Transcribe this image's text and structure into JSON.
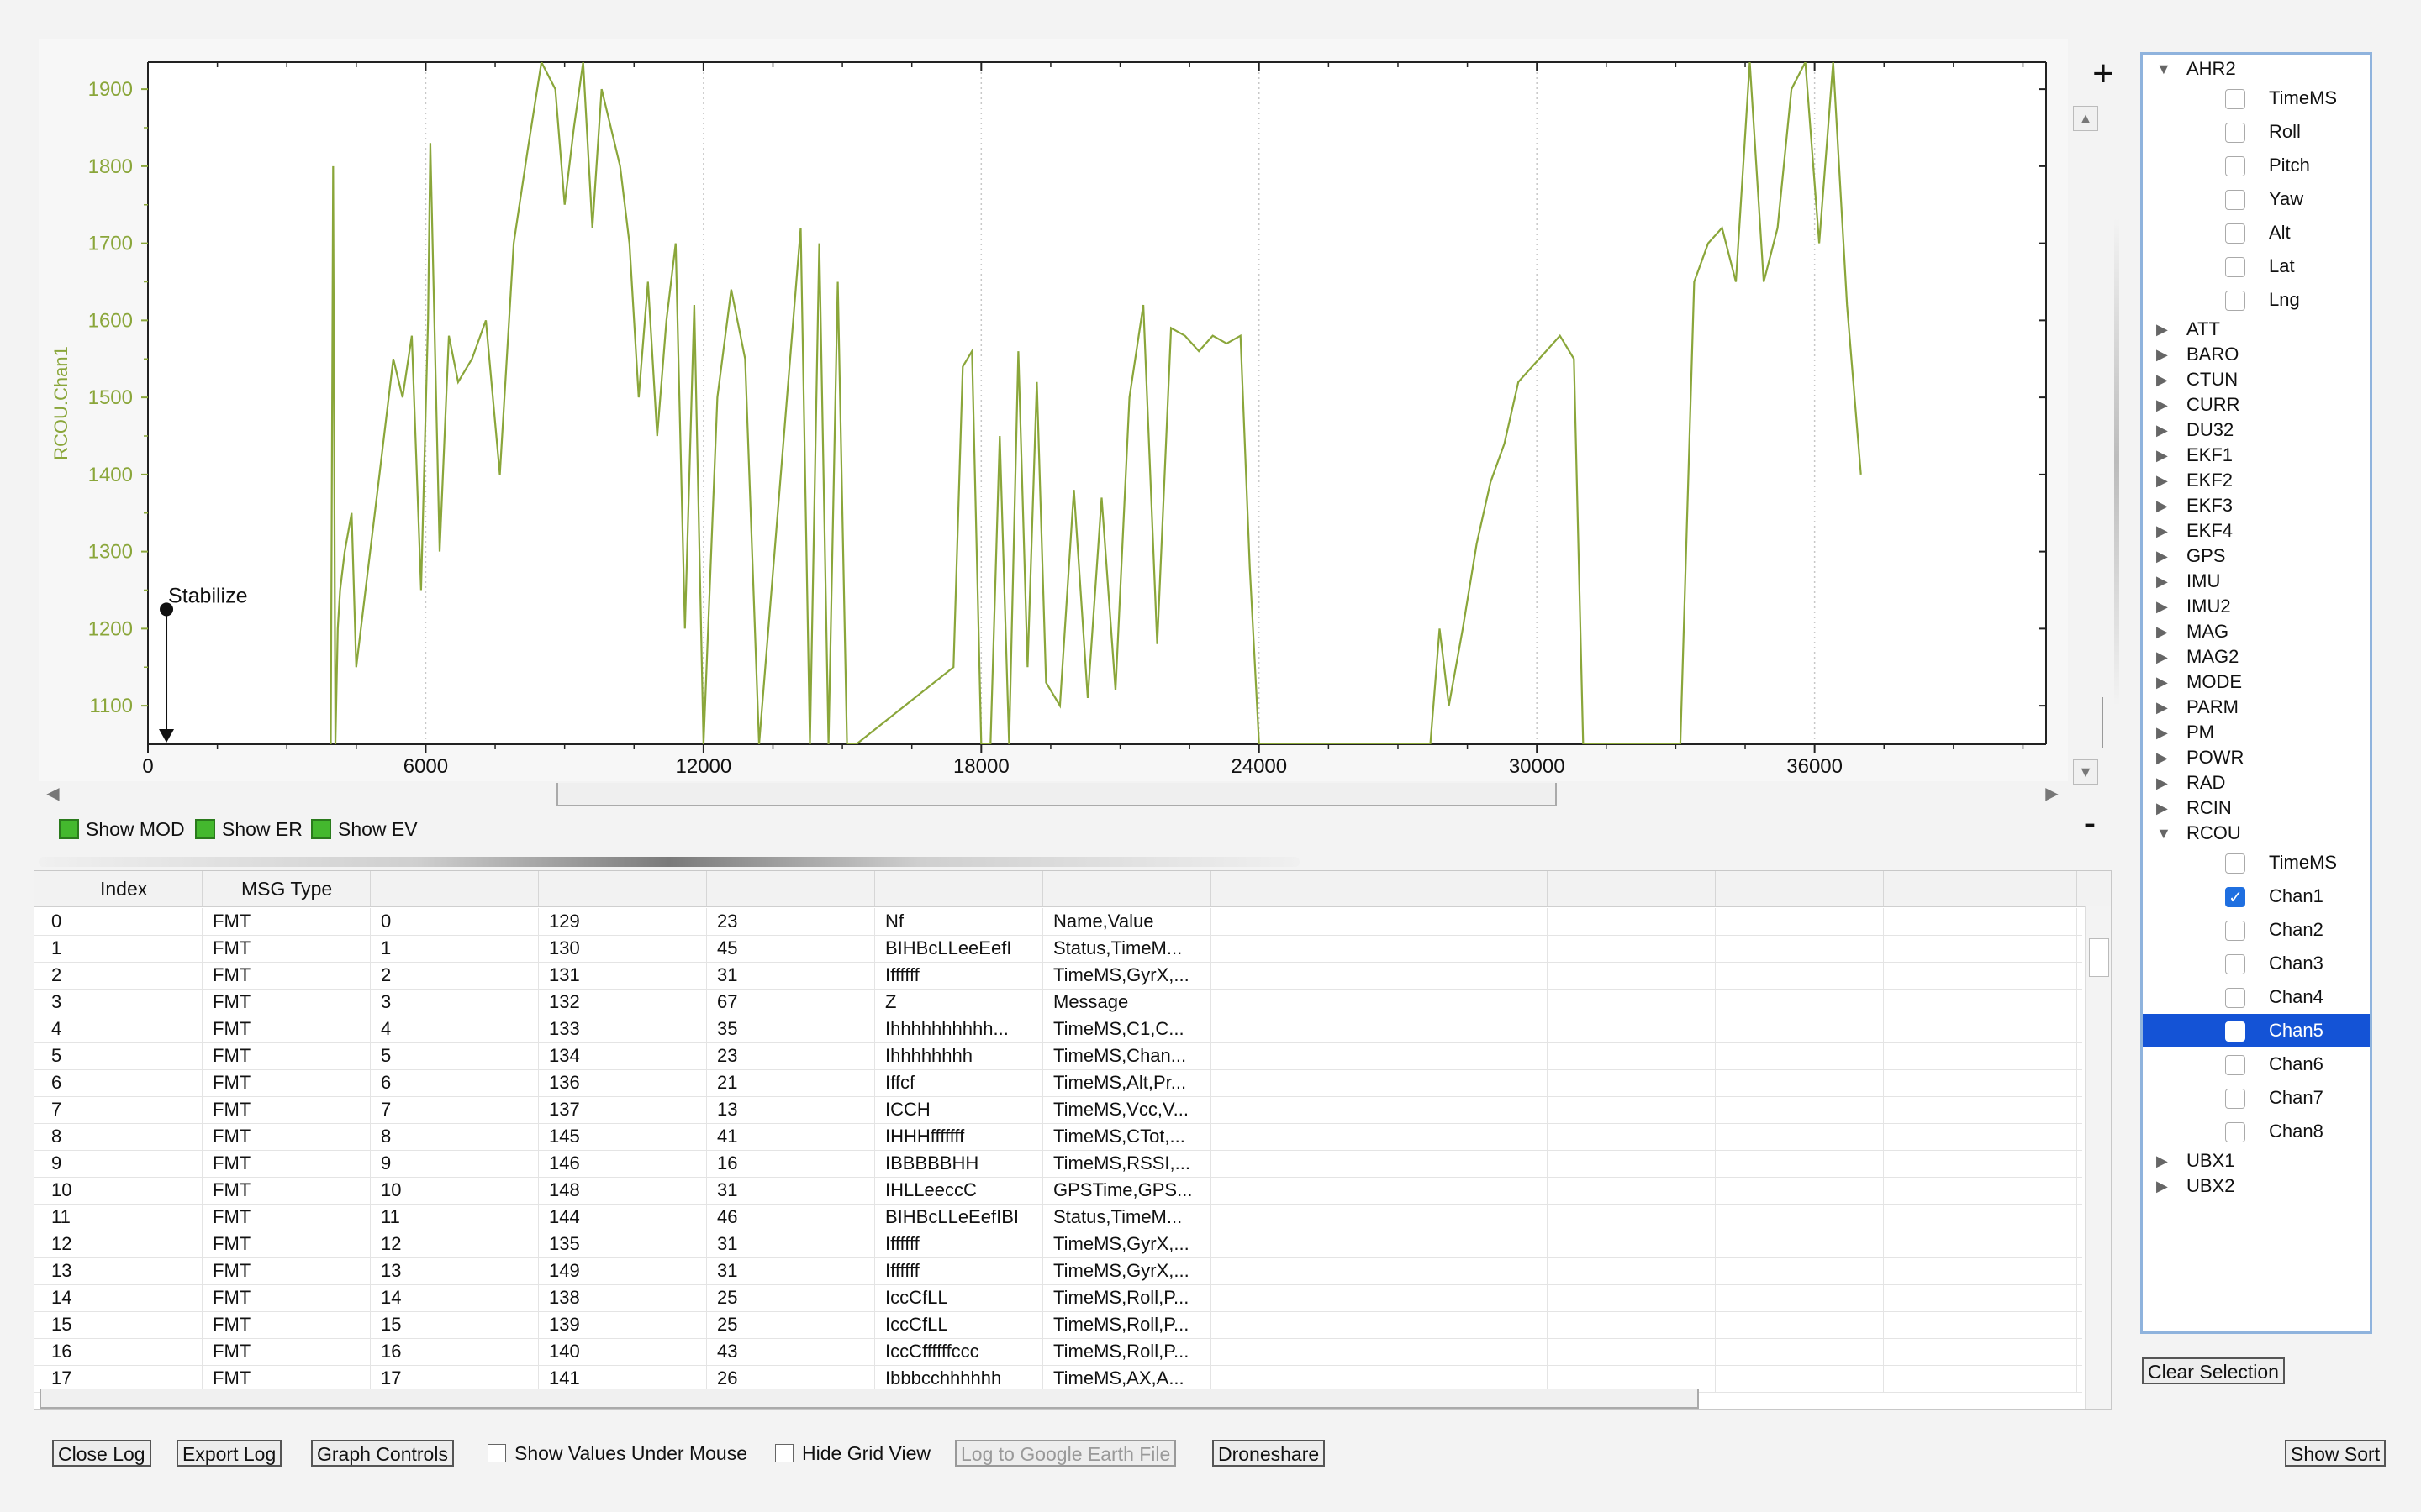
{
  "graph": {
    "y_axis_label": "RCOU.Chan1",
    "zoom_in": "+",
    "zoom_out": "-",
    "annotation": "Stabilize",
    "show_toggles": [
      "Show MOD",
      "Show ER",
      "Show EV"
    ]
  },
  "chart_data": {
    "type": "line",
    "ylabel": "RCOU.Chan1",
    "xlim": [
      0,
      41000
    ],
    "ylim": [
      1050,
      1935
    ],
    "x_ticks": [
      "0",
      "6000",
      "12000",
      "18000",
      "24000",
      "30000",
      "36000"
    ],
    "y_ticks": [
      "1100",
      "1200",
      "1300",
      "1400",
      "1500",
      "1600",
      "1700",
      "1800",
      "1900"
    ],
    "series": [
      {
        "color": "#8aa63a",
        "x": [
          3950,
          4000,
          4050,
          4100,
          4150,
          4250,
          4400,
          4500,
          4700,
          4900,
          5100,
          5300,
          5500,
          5700,
          5900,
          6050,
          6100,
          6300,
          6500,
          6700,
          7000,
          7300,
          7600,
          7900,
          8200,
          8500,
          8800,
          9000,
          9200,
          9400,
          9600,
          9800,
          10000,
          10200,
          10400,
          10600,
          10800,
          11000,
          11200,
          11400,
          11600,
          11800,
          12000,
          12300,
          12600,
          12900,
          13200,
          14100,
          14300,
          14500,
          14700,
          14900,
          15100,
          15300,
          17400,
          17600,
          17800,
          18000,
          18200,
          18400,
          18600,
          18800,
          19000,
          19200,
          19400,
          19700,
          20000,
          20300,
          20600,
          20900,
          21200,
          21500,
          21800,
          22100,
          22400,
          22700,
          23000,
          23300,
          23600,
          23800,
          24000,
          24300,
          27700,
          27900,
          28100,
          28400,
          28700,
          29000,
          29300,
          29600,
          29900,
          30200,
          30500,
          30800,
          31000,
          33100,
          33400,
          33700,
          34000,
          34300,
          34600,
          34900,
          35200,
          35500,
          35800,
          36100,
          36400,
          36700,
          37000
        ],
        "y": [
          1050,
          1800,
          1050,
          1200,
          1250,
          1300,
          1350,
          1150,
          1250,
          1350,
          1450,
          1550,
          1500,
          1580,
          1250,
          1600,
          1830,
          1300,
          1580,
          1520,
          1550,
          1600,
          1400,
          1700,
          1820,
          1935,
          1900,
          1750,
          1850,
          1935,
          1720,
          1900,
          1850,
          1800,
          1700,
          1500,
          1650,
          1450,
          1600,
          1700,
          1200,
          1620,
          1050,
          1500,
          1640,
          1550,
          1050,
          1720,
          1050,
          1700,
          1050,
          1650,
          1050,
          1050,
          1150,
          1540,
          1560,
          1050,
          1050,
          1450,
          1050,
          1560,
          1150,
          1520,
          1130,
          1100,
          1380,
          1110,
          1370,
          1120,
          1500,
          1620,
          1180,
          1590,
          1580,
          1560,
          1580,
          1570,
          1580,
          1280,
          1050,
          1050,
          1050,
          1200,
          1100,
          1200,
          1310,
          1390,
          1440,
          1520,
          1540,
          1560,
          1580,
          1550,
          1050,
          1050,
          1650,
          1700,
          1720,
          1650,
          1935,
          1650,
          1720,
          1900,
          1935,
          1700,
          1935,
          1620,
          1400
        ]
      }
    ],
    "annotations": [
      {
        "x": 400,
        "y": 1225,
        "text": "Stabilize"
      }
    ]
  },
  "table": {
    "headers": [
      "Index",
      "MSG Type",
      "",
      "",
      "",
      "",
      "",
      "",
      "",
      "",
      "",
      ""
    ],
    "rows": [
      [
        "0",
        "FMT",
        "0",
        "129",
        "23",
        "Nf",
        "Name,Value"
      ],
      [
        "1",
        "FMT",
        "1",
        "130",
        "45",
        "BIHBcLLeeEefI",
        "Status,TimeM..."
      ],
      [
        "2",
        "FMT",
        "2",
        "131",
        "31",
        "Iffffff",
        "TimeMS,GyrX,..."
      ],
      [
        "3",
        "FMT",
        "3",
        "132",
        "67",
        "Z",
        "Message"
      ],
      [
        "4",
        "FMT",
        "4",
        "133",
        "35",
        "Ihhhhhhhhhh...",
        "TimeMS,C1,C..."
      ],
      [
        "5",
        "FMT",
        "5",
        "134",
        "23",
        "Ihhhhhhhh",
        "TimeMS,Chan..."
      ],
      [
        "6",
        "FMT",
        "6",
        "136",
        "21",
        "Iffcf",
        "TimeMS,Alt,Pr..."
      ],
      [
        "7",
        "FMT",
        "7",
        "137",
        "13",
        "ICCH",
        "TimeMS,Vcc,V..."
      ],
      [
        "8",
        "FMT",
        "8",
        "145",
        "41",
        "IHHHfffffff",
        "TimeMS,CTot,..."
      ],
      [
        "9",
        "FMT",
        "9",
        "146",
        "16",
        "IBBBBBHH",
        "TimeMS,RSSI,..."
      ],
      [
        "10",
        "FMT",
        "10",
        "148",
        "31",
        "IHLLeeccC",
        "GPSTime,GPS..."
      ],
      [
        "11",
        "FMT",
        "11",
        "144",
        "46",
        "BIHBcLLeEefIBI",
        "Status,TimeM..."
      ],
      [
        "12",
        "FMT",
        "12",
        "135",
        "31",
        "Iffffff",
        "TimeMS,GyrX,..."
      ],
      [
        "13",
        "FMT",
        "13",
        "149",
        "31",
        "Iffffff",
        "TimeMS,GyrX,..."
      ],
      [
        "14",
        "FMT",
        "14",
        "138",
        "25",
        "IccCfLL",
        "TimeMS,Roll,P..."
      ],
      [
        "15",
        "FMT",
        "15",
        "139",
        "25",
        "IccCfLL",
        "TimeMS,Roll,P..."
      ],
      [
        "16",
        "FMT",
        "16",
        "140",
        "43",
        "IccCffffffccc",
        "TimeMS,Roll,P..."
      ],
      [
        "17",
        "FMT",
        "17",
        "141",
        "26",
        "Ibbbcchhhhhh",
        "TimeMS,AX,A..."
      ]
    ]
  },
  "tree": {
    "groups_top": [
      {
        "label": "AHR2",
        "expanded": true,
        "children": [
          {
            "label": "TimeMS",
            "checked": false
          },
          {
            "label": "Roll",
            "checked": false
          },
          {
            "label": "Pitch",
            "checked": false
          },
          {
            "label": "Yaw",
            "checked": false
          },
          {
            "label": "Alt",
            "checked": false
          },
          {
            "label": "Lat",
            "checked": false
          },
          {
            "label": "Lng",
            "checked": false
          }
        ]
      }
    ],
    "collapsed_middle": [
      "ATT",
      "BARO",
      "CTUN",
      "CURR",
      "DU32",
      "EKF1",
      "EKF2",
      "EKF3",
      "EKF4",
      "GPS",
      "IMU",
      "IMU2",
      "MAG",
      "MAG2",
      "MODE",
      "PARM",
      "PM",
      "POWR",
      "RAD",
      "RCIN"
    ],
    "rcou": {
      "label": "RCOU",
      "children": [
        {
          "label": "TimeMS",
          "checked": false
        },
        {
          "label": "Chan1",
          "checked": true
        },
        {
          "label": "Chan2",
          "checked": false
        },
        {
          "label": "Chan3",
          "checked": false
        },
        {
          "label": "Chan4",
          "checked": false
        },
        {
          "label": "Chan5",
          "checked": false,
          "selected": true
        },
        {
          "label": "Chan6",
          "checked": false
        },
        {
          "label": "Chan7",
          "checked": false
        },
        {
          "label": "Chan8",
          "checked": false
        }
      ]
    },
    "collapsed_bottom": [
      "UBX1",
      "UBX2"
    ],
    "clear_selection": "Clear Selection"
  },
  "bottom_bar": {
    "close_log": "Close Log",
    "export_log": "Export Log",
    "graph_controls": "Graph Controls",
    "show_values": "Show Values Under Mouse",
    "hide_grid": "Hide Grid View",
    "google_earth": "Log to Google Earth File",
    "droneshare": "Droneshare",
    "show_sort": "Show Sort"
  }
}
